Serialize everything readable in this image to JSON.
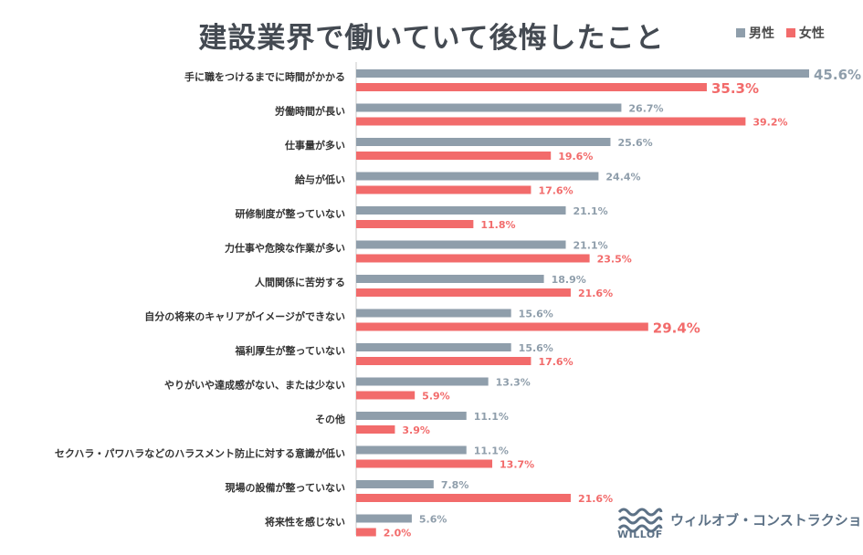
{
  "chart_data": {
    "type": "bar",
    "orientation": "horizontal",
    "title": "建設業界で働いていて後悔したこと",
    "legend": [
      {
        "name": "男性",
        "color": "#8f9eab"
      },
      {
        "name": "女性",
        "color": "#f26b6b"
      }
    ],
    "categories": [
      "手に職をつけるまでに時間がかかる",
      "労働時間が長い",
      "仕事量が多い",
      "給与が低い",
      "研修制度が整っていない",
      "力仕事や危険な作業が多い",
      "人間関係に苦労する",
      "自分の将来のキャリアがイメージができない",
      "福利厚生が整っていない",
      "やりがいや達成感がない、または少ない",
      "その他",
      "セクハラ・パワハラなどのハラスメント防止に対する意識が低い",
      "現場の設備が整っていない",
      "将来性を感じない"
    ],
    "series": [
      {
        "name": "男性",
        "color": "#8f9eab",
        "values": [
          45.6,
          26.7,
          25.6,
          24.4,
          21.1,
          21.1,
          18.9,
          15.6,
          15.6,
          13.3,
          11.1,
          11.1,
          7.8,
          5.6
        ],
        "labels": [
          "45.6%",
          "26.7%",
          "25.6%",
          "24.4%",
          "21.1%",
          "21.1%",
          "18.9%",
          "15.6%",
          "15.6%",
          "13.3%",
          "11.1%",
          "11.1%",
          "7.8%",
          "5.6%"
        ]
      },
      {
        "name": "女性",
        "color": "#f26b6b",
        "values": [
          35.3,
          39.2,
          19.6,
          17.6,
          11.8,
          23.5,
          21.6,
          29.4,
          17.6,
          5.9,
          3.9,
          13.7,
          21.6,
          2.0
        ],
        "labels": [
          "35.3%",
          "39.2%",
          "19.6%",
          "17.6%",
          "11.8%",
          "23.5%",
          "21.6%",
          "29.4%",
          "17.6%",
          "5.9%",
          "3.9%",
          "13.7%",
          "21.6%",
          "2.0%"
        ]
      }
    ],
    "highlighted": [
      {
        "series": 0,
        "index": 0
      },
      {
        "series": 1,
        "index": 0
      },
      {
        "series": 1,
        "index": 7
      }
    ],
    "xlim": [
      0,
      45.6
    ],
    "gridlines": false
  },
  "brand": {
    "logo_text": "WILLOF",
    "name": "ウィルオブ・コンストラクション"
  }
}
